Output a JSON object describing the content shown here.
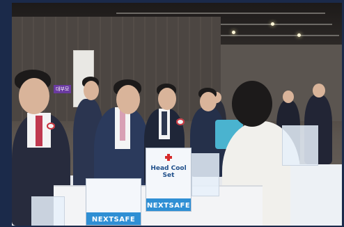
{
  "scene": {
    "colors": {
      "frame": "#1b2a4a",
      "booth_blue": "#2f8fd4",
      "signage_purple": "#6a3aa0"
    }
  },
  "signage": {
    "booth_sign_text": "대부모"
  },
  "products": {
    "head_cool_box_label": "Head Cool Set",
    "brand_label_front": "NEXTSAFE",
    "brand_label_right": "NEXTSAFE"
  }
}
